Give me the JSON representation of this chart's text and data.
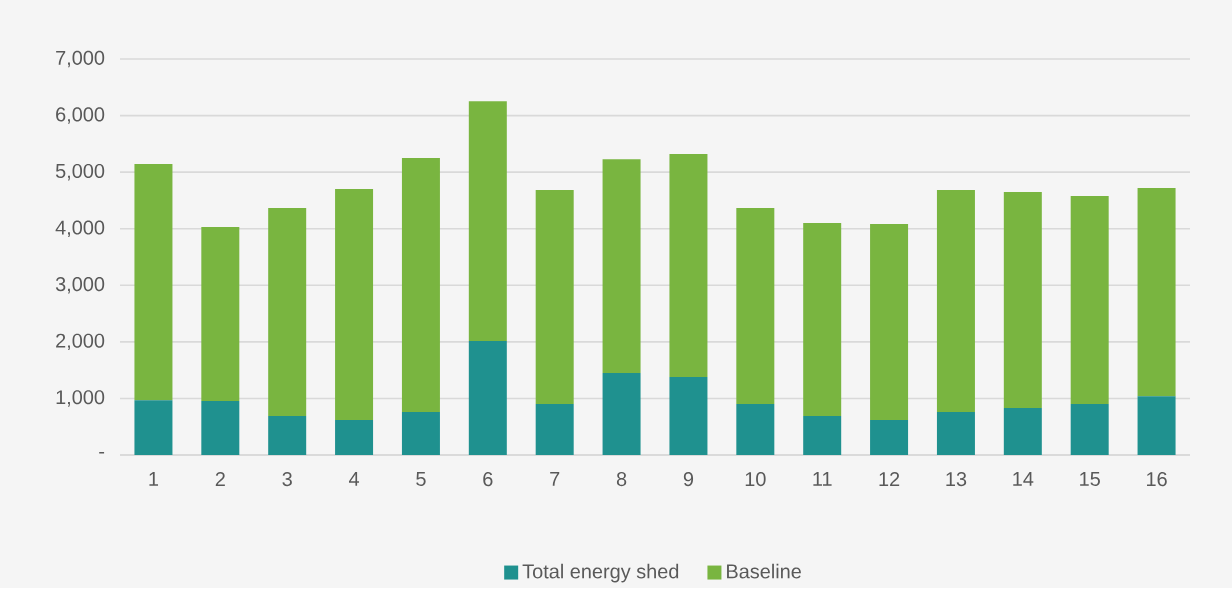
{
  "chart_data": {
    "type": "bar",
    "stacked": true,
    "categories": [
      "1",
      "2",
      "3",
      "4",
      "5",
      "6",
      "7",
      "8",
      "9",
      "10",
      "11",
      "12",
      "13",
      "14",
      "15",
      "16"
    ],
    "series": [
      {
        "name": "Total energy shed",
        "color": "#1f918f",
        "values": [
          970,
          955,
          690,
          620,
          760,
          2015,
          900,
          1450,
          1380,
          900,
          690,
          620,
          760,
          830,
          900,
          1040
        ]
      },
      {
        "name": "Baseline",
        "color": "#79b540",
        "values": [
          4175,
          3075,
          3675,
          4080,
          4490,
          4240,
          3785,
          3780,
          3940,
          3465,
          3410,
          3465,
          3925,
          3820,
          3680,
          3680
        ]
      }
    ],
    "ylim": [
      0,
      7000
    ],
    "yticks": [
      {
        "value": 0,
        "label": "-"
      },
      {
        "value": 1000,
        "label": "1,000"
      },
      {
        "value": 2000,
        "label": "2,000"
      },
      {
        "value": 3000,
        "label": "3,000"
      },
      {
        "value": 4000,
        "label": "4,000"
      },
      {
        "value": 5000,
        "label": "5,000"
      },
      {
        "value": 6000,
        "label": "6,000"
      },
      {
        "value": 7000,
        "label": "7,000"
      }
    ],
    "grid": "y",
    "legend": "bottom"
  }
}
